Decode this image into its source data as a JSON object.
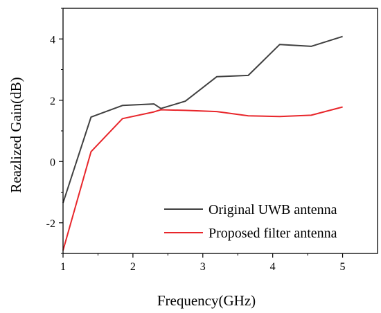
{
  "chart_data": {
    "type": "line",
    "title": "",
    "xlabel": "Frequency(GHz)",
    "ylabel": "Reazlized Gain(dB)",
    "xlim": [
      1,
      5.5
    ],
    "ylim": [
      -3,
      5
    ],
    "xticks": [
      1,
      2,
      3,
      4,
      5
    ],
    "yticks": [
      -2,
      0,
      2,
      4
    ],
    "xtick_labels": [
      "1",
      "2",
      "3",
      "4",
      "5"
    ],
    "ytick_labels": [
      "-2",
      "0",
      "2",
      "4"
    ],
    "grid": false,
    "legend_position": "bottom-right",
    "series": [
      {
        "name": "Original UWB antenna",
        "color": "#404040",
        "points": [
          [
            1.0,
            -1.35
          ],
          [
            1.4,
            1.45
          ],
          [
            1.85,
            1.83
          ],
          [
            2.3,
            1.88
          ],
          [
            2.4,
            1.73
          ],
          [
            2.75,
            1.97
          ],
          [
            3.2,
            2.77
          ],
          [
            3.65,
            2.81
          ],
          [
            4.1,
            3.82
          ],
          [
            4.55,
            3.76
          ],
          [
            5.0,
            4.08
          ]
        ]
      },
      {
        "name": "Proposed filter antenna",
        "color": "#e8262b",
        "points": [
          [
            1.0,
            -2.9
          ],
          [
            1.4,
            0.32
          ],
          [
            1.85,
            1.4
          ],
          [
            2.3,
            1.62
          ],
          [
            2.4,
            1.69
          ],
          [
            2.75,
            1.67
          ],
          [
            3.2,
            1.63
          ],
          [
            3.65,
            1.49
          ],
          [
            4.1,
            1.47
          ],
          [
            4.55,
            1.51
          ],
          [
            5.0,
            1.78
          ]
        ]
      }
    ]
  }
}
